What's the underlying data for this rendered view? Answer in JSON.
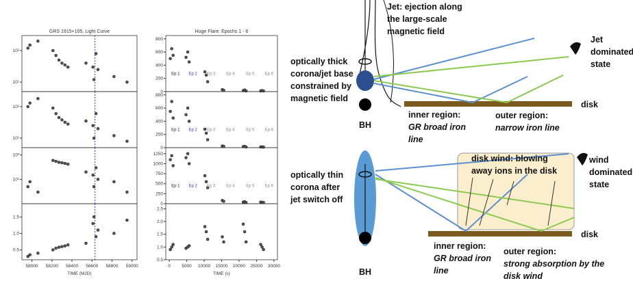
{
  "plots": [
    {
      "title": "GRS 1915+105, Light Curve",
      "xlabel": "TIME (MJD)",
      "xlim": [
        57900,
        59050
      ],
      "xticks": [
        58000,
        58200,
        58400,
        58600,
        58800,
        59000
      ],
      "marker_x": 58630,
      "marker_color": "#2a3fd0",
      "x": [
        57960,
        57980,
        58060,
        58210,
        58240,
        58270,
        58300,
        58330,
        58360,
        58540,
        58610,
        58620,
        58640,
        58660,
        58820,
        58950
      ],
      "panels": [
        {
          "log": true,
          "ylim": [
            5,
            300
          ],
          "yticks": [
            {
              "value": 10,
              "label": "10¹"
            },
            {
              "value": 100,
              "label": "10²"
            }
          ],
          "y": [
            120,
            150,
            200,
            100,
            70,
            50,
            40,
            35,
            30,
            40,
            30,
            12,
            80,
            25,
            15,
            10
          ]
        },
        {
          "log": true,
          "ylim": [
            5,
            300
          ],
          "yticks": [
            {
              "value": 10,
              "label": "10¹"
            },
            {
              "value": 100,
              "label": "10²"
            }
          ],
          "y": [
            100,
            130,
            180,
            90,
            60,
            45,
            38,
            32,
            28,
            35,
            25,
            10,
            60,
            20,
            12,
            8
          ]
        },
        {
          "log": true,
          "ylim": [
            1,
            200
          ],
          "yticks": [
            {
              "value": 10,
              "label": "10¹"
            },
            {
              "value": 100,
              "label": "10²"
            }
          ],
          "y": [
            5,
            8,
            3,
            60,
            55,
            50,
            48,
            45,
            42,
            20,
            15,
            5,
            30,
            10,
            8,
            3
          ]
        },
        {
          "log": false,
          "ylim": [
            0.2,
            1.9
          ],
          "yticks": [
            0.5,
            {
              "value": 1,
              "label": "1.0"
            },
            1.5
          ],
          "y": [
            0.3,
            0.35,
            0.4,
            0.5,
            0.55,
            0.58,
            0.6,
            0.62,
            0.65,
            0.7,
            1.3,
            1.5,
            0.9,
            1.1,
            1.0,
            1.4
          ]
        }
      ]
    },
    {
      "title": "Huge Flare: Epochs 1 - 6",
      "xlabel": "TIME (s)",
      "xlim": [
        -1000,
        31000
      ],
      "xticks": [
        0,
        5000,
        10000,
        15000,
        20000,
        25000,
        30000
      ],
      "x": [
        300,
        700,
        1100,
        4800,
        5300,
        5700,
        10200,
        10600,
        11000,
        15200,
        15600,
        21200,
        21600,
        22000,
        26200,
        26600,
        27000
      ],
      "epochs": [
        {
          "label": "Ep 1",
          "x": 1800,
          "color": "#222222"
        },
        {
          "label": "Ep 2",
          "x": 6800,
          "color": "#2a3fa0"
        },
        {
          "label": "Ep 3",
          "x": 12000,
          "color": "#888888"
        },
        {
          "label": "Ep 4",
          "x": 17500,
          "color": "#888888"
        },
        {
          "label": "Ep 5",
          "x": 23200,
          "color": "#888888"
        },
        {
          "label": "Ep 6",
          "x": 28600,
          "color": "#888888"
        }
      ],
      "panels": [
        {
          "log": false,
          "ylim": [
            0,
            850
          ],
          "yticks": [
            0,
            200,
            400,
            600,
            800
          ],
          "y": [
            500,
            650,
            550,
            520,
            600,
            450,
            300,
            250,
            150,
            30,
            20,
            15,
            25,
            10,
            10,
            15,
            10
          ]
        },
        {
          "log": false,
          "ylim": [
            0,
            850
          ],
          "yticks": [
            0,
            200,
            400,
            600,
            800
          ],
          "y": [
            550,
            700,
            450,
            500,
            600,
            400,
            280,
            220,
            120,
            25,
            20,
            15,
            20,
            10,
            10,
            12,
            8
          ]
        },
        {
          "log": false,
          "ylim": [
            0,
            1400
          ],
          "yticks": [
            0,
            250,
            500,
            750,
            1000,
            1250
          ],
          "y": [
            1100,
            1200,
            950,
            1150,
            1250,
            1000,
            700,
            550,
            400,
            80,
            60,
            40,
            50,
            30,
            40,
            35,
            30
          ]
        },
        {
          "log": false,
          "ylim": [
            0.5,
            2.7
          ],
          "yticks": [
            0.5,
            {
              "value": 1,
              "label": "1.0"
            },
            1.5,
            {
              "value": 2,
              "label": "2.0"
            },
            2.5
          ],
          "y": [
            0.9,
            1.0,
            1.1,
            0.95,
            1.0,
            1.05,
            1.8,
            1.6,
            1.3,
            1.4,
            1.2,
            1.9,
            1.6,
            1.2,
            1.1,
            1.0,
            0.9
          ]
        }
      ]
    }
  ],
  "diagram": {
    "top": {
      "jet": [
        "Jet: ejection along",
        "the large-scale",
        "magnetic field"
      ],
      "corona": [
        "optically thick",
        "corona/jet base",
        "constrained by",
        "magnetic field"
      ],
      "state": [
        "Jet",
        "dominated",
        "state"
      ],
      "disk": "disk",
      "bh": "BH",
      "inner_title": "inner region:",
      "inner_text": [
        "GR broad iron",
        "line"
      ],
      "outer_title": "outer region:",
      "outer_text": [
        "narrow iron line"
      ]
    },
    "bottom": {
      "corona": [
        "optically thin",
        "corona after",
        "jet switch off"
      ],
      "wind": [
        "disk wind: blowing",
        "away ions in the disk"
      ],
      "state": [
        "wind",
        "dominated",
        "state"
      ],
      "disk": "disk",
      "bh": "BH",
      "inner_title": "inner region:",
      "inner_text": [
        "GR broad iron",
        "line"
      ],
      "outer_title": "outer region:",
      "outer_text": [
        "strong absorption by the",
        "disk wind"
      ]
    }
  }
}
